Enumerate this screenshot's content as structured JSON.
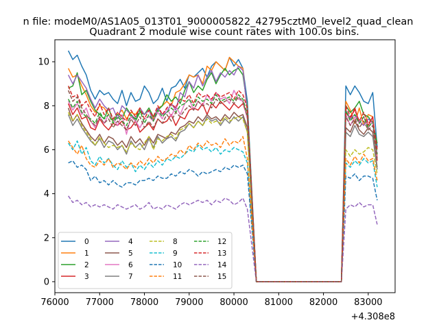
{
  "page": {
    "suptitle": "n file: modeM0/AS1A05_013T01_9000005822_42795cztM0_level2_quad_clean"
  },
  "chart_data": {
    "type": "line",
    "title": "Quadrant 2 module wise count rates with 100.0s bins.",
    "xlabel": "",
    "ylabel": "",
    "x_offset_label": "+4.308e8",
    "xlim": [
      76000,
      83600
    ],
    "ylim": [
      -0.5,
      11
    ],
    "xticks": [
      76000,
      77000,
      78000,
      79000,
      80000,
      81000,
      82000,
      83000
    ],
    "xtick_labels": [
      "76000",
      "77000",
      "78000",
      "79000",
      "80000",
      "81000",
      "82000",
      "83000"
    ],
    "yticks": [
      0,
      2,
      4,
      6,
      8,
      10
    ],
    "ytick_labels": [
      "0",
      "2",
      "4",
      "6",
      "8",
      "10"
    ],
    "grid": false,
    "legend_position": "lower-left",
    "legend_columns": 4,
    "segments": [
      [
        76300,
        80400
      ],
      [
        80500,
        82400
      ],
      [
        82500,
        83300
      ]
    ],
    "series": [
      {
        "name": "0",
        "color": "#1f77b4",
        "dash": "solid",
        "active1": [
          10.5,
          10.1,
          10.3,
          9.8,
          9.4,
          8.7,
          8.3,
          8.7,
          8.5,
          8.6,
          8.3,
          8.1,
          8.7,
          8.0,
          8.6,
          8.2,
          8.3,
          8.9,
          8.6,
          8.1,
          8.3,
          8.8,
          8.2,
          8.8,
          8.9,
          9.2,
          8.8,
          9.4,
          9.3,
          9.5,
          9.7,
          9.3,
          9.8,
          10.0,
          9.8,
          9.6,
          10.2,
          9.8,
          10.1,
          9.7,
          8.2
        ],
        "active2": [
          8.9,
          8.5,
          8.9,
          8.6,
          8.2,
          8.1,
          8.6,
          6.1
        ]
      },
      {
        "name": "1",
        "color": "#ff7f0e",
        "dash": "solid",
        "active1": [
          9.7,
          9.3,
          9.4,
          8.9,
          8.5,
          8.0,
          7.7,
          8.0,
          7.9,
          7.6,
          7.3,
          7.6,
          7.8,
          7.4,
          7.7,
          7.6,
          7.9,
          7.6,
          7.8,
          7.4,
          7.9,
          8.0,
          8.2,
          8.0,
          8.6,
          8.7,
          9.0,
          9.4,
          9.3,
          9.4,
          9.0,
          9.8,
          9.6,
          10.0,
          9.8,
          9.6,
          10.2,
          10.0,
          9.8,
          9.7,
          7.7
        ],
        "active2": [
          8.2,
          7.8,
          7.2,
          7.9,
          7.1,
          7.6,
          7.5,
          5.7
        ]
      },
      {
        "name": "2",
        "color": "#2ca02c",
        "dash": "solid",
        "active1": [
          8.8,
          8.9,
          9.5,
          8.5,
          8.7,
          8.2,
          7.8,
          7.6,
          7.4,
          7.9,
          7.3,
          7.6,
          7.4,
          7.9,
          7.6,
          7.3,
          7.7,
          7.6,
          7.9,
          7.5,
          7.8,
          8.0,
          8.5,
          8.2,
          8.4,
          8.1,
          8.7,
          9.1,
          8.6,
          8.9,
          8.7,
          9.2,
          9.5,
          9.0,
          9.4,
          9.7,
          9.4,
          9.6,
          9.7,
          9.4,
          8.0
        ],
        "active2": [
          8.0,
          7.7,
          7.9,
          8.2,
          7.6,
          7.5,
          7.2,
          6.3
        ]
      },
      {
        "name": "3",
        "color": "#d62728",
        "dash": "solid",
        "active1": [
          8.1,
          7.6,
          7.9,
          7.4,
          7.5,
          7.0,
          6.9,
          7.4,
          7.1,
          6.9,
          7.2,
          7.1,
          7.3,
          6.9,
          7.0,
          7.3,
          6.8,
          7.0,
          7.2,
          6.9,
          7.4,
          7.2,
          7.3,
          7.6,
          7.1,
          7.5,
          7.4,
          7.8,
          7.9,
          7.8,
          8.1,
          7.6,
          8.1,
          7.9,
          8.2,
          8.0,
          7.8,
          8.1,
          7.9,
          8.1,
          7.5
        ],
        "active2": [
          7.7,
          7.4,
          7.9,
          7.2,
          7.5,
          7.1,
          7.5,
          5.5
        ]
      },
      {
        "name": "4",
        "color": "#9467bd",
        "dash": "solid",
        "active1": [
          9.4,
          9.0,
          9.4,
          9.1,
          8.8,
          8.3,
          7.9,
          8.3,
          8.0,
          7.8,
          7.9,
          7.4,
          8.0,
          7.8,
          7.6,
          7.4,
          7.9,
          7.6,
          7.8,
          7.3,
          7.9,
          7.6,
          7.7,
          8.1,
          7.8,
          8.6,
          8.4,
          9.1,
          8.8,
          9.4,
          8.9,
          9.3,
          9.6,
          9.1,
          9.5,
          9.3,
          9.6,
          9.4,
          9.8,
          9.6,
          7.8
        ],
        "active2": [
          7.8,
          7.4,
          7.6,
          7.3,
          7.1,
          7.4,
          7.2,
          5.8
        ]
      },
      {
        "name": "5",
        "color": "#8c564b",
        "dash": "solid",
        "active1": [
          7.9,
          7.3,
          7.6,
          7.2,
          6.9,
          6.6,
          6.4,
          6.7,
          6.3,
          6.6,
          6.5,
          6.2,
          6.4,
          6.1,
          6.6,
          6.3,
          6.5,
          6.2,
          6.6,
          6.3,
          6.7,
          6.6,
          6.5,
          6.8,
          6.7,
          7.0,
          7.1,
          7.3,
          7.2,
          7.5,
          7.3,
          7.6,
          7.4,
          7.5,
          7.3,
          7.6,
          7.4,
          7.7,
          7.5,
          7.6,
          7.0
        ],
        "active2": [
          7.0,
          6.8,
          7.3,
          6.9,
          6.7,
          7.0,
          6.8,
          5.2
        ]
      },
      {
        "name": "6",
        "color": "#e377c2",
        "dash": "solid",
        "active1": [
          8.2,
          7.8,
          8.1,
          7.6,
          7.9,
          7.3,
          7.0,
          7.5,
          7.2,
          7.6,
          7.4,
          7.1,
          7.6,
          6.7,
          7.5,
          7.3,
          7.0,
          7.4,
          7.5,
          7.3,
          7.7,
          7.4,
          7.9,
          7.5,
          8.0,
          7.6,
          8.1,
          8.3,
          7.8,
          8.2,
          8.0,
          8.5,
          8.2,
          8.6,
          8.3,
          8.4,
          8.1,
          8.7,
          8.3,
          8.2,
          7.4
        ],
        "active2": [
          7.6,
          7.1,
          7.5,
          7.2,
          7.5,
          7.0,
          7.3,
          5.6
        ]
      },
      {
        "name": "7",
        "color": "#7f7f7f",
        "dash": "solid",
        "active1": [
          7.6,
          7.1,
          7.4,
          7.0,
          6.7,
          6.4,
          6.2,
          6.5,
          6.1,
          6.4,
          6.3,
          6.0,
          6.2,
          5.8,
          6.4,
          6.1,
          6.3,
          6.0,
          6.5,
          6.1,
          6.6,
          6.3,
          6.5,
          6.6,
          6.4,
          6.8,
          6.9,
          7.2,
          7.0,
          7.3,
          7.1,
          7.5,
          7.3,
          7.4,
          7.1,
          7.4,
          7.2,
          7.5,
          7.3,
          7.5,
          6.8
        ],
        "active2": [
          6.8,
          6.6,
          7.1,
          6.7,
          6.6,
          6.8,
          6.6,
          5.1
        ]
      },
      {
        "name": "8",
        "color": "#bcbd22",
        "dash": "dashed",
        "active1": [
          7.7,
          7.3,
          7.6,
          7.1,
          6.8,
          6.5,
          6.2,
          6.6,
          6.3,
          6.1,
          6.2,
          6.1,
          6.2,
          5.9,
          6.3,
          6.1,
          6.0,
          6.3,
          6.6,
          6.0,
          6.5,
          6.4,
          6.6,
          6.7,
          6.5,
          6.9,
          7.0,
          7.2,
          7.0,
          7.3,
          7.1,
          7.4,
          7.2,
          7.3,
          7.2,
          7.5,
          7.3,
          7.4,
          7.5,
          7.4,
          6.8
        ],
        "active2": [
          6.0,
          5.7,
          6.0,
          5.8,
          5.9,
          6.1,
          6.0,
          4.9
        ]
      },
      {
        "name": "9",
        "color": "#17becf",
        "dash": "dashed",
        "active1": [
          6.3,
          6.0,
          6.4,
          5.8,
          6.1,
          5.5,
          5.3,
          5.7,
          5.4,
          5.6,
          5.3,
          5.1,
          5.5,
          5.2,
          5.4,
          5.0,
          5.3,
          5.1,
          5.4,
          5.2,
          5.5,
          5.3,
          5.6,
          5.5,
          5.7,
          5.6,
          5.8,
          6.0,
          5.9,
          6.2,
          6.0,
          6.1,
          5.9,
          6.1,
          5.8,
          6.0,
          5.9,
          6.1,
          6.0,
          5.9,
          5.4
        ],
        "active2": [
          5.4,
          5.2,
          5.5,
          5.3,
          5.6,
          5.4,
          5.5,
          4.3
        ]
      },
      {
        "name": "10",
        "color": "#1f77b4",
        "dash": "dashed",
        "active1": [
          5.4,
          5.5,
          5.2,
          5.3,
          5.1,
          4.6,
          4.8,
          4.5,
          4.6,
          4.4,
          4.6,
          4.4,
          4.3,
          4.5,
          4.5,
          4.4,
          4.6,
          4.6,
          4.7,
          4.6,
          4.8,
          4.7,
          4.7,
          4.9,
          4.8,
          5.0,
          4.9,
          5.1,
          5.0,
          4.8,
          5.0,
          4.9,
          5.0,
          5.1,
          5.0,
          5.2,
          5.1,
          5.3,
          5.2,
          5.3,
          4.9
        ],
        "active2": [
          4.8,
          4.7,
          4.9,
          4.6,
          4.8,
          4.8,
          4.7,
          3.7
        ]
      },
      {
        "name": "11",
        "color": "#ff7f0e",
        "dash": "dashed",
        "active1": [
          6.4,
          6.1,
          5.8,
          6.2,
          5.6,
          5.3,
          5.2,
          5.5,
          5.3,
          5.6,
          5.2,
          5.4,
          5.3,
          5.1,
          5.4,
          5.2,
          5.5,
          5.3,
          5.6,
          5.4,
          5.7,
          5.5,
          5.6,
          5.8,
          5.7,
          6.0,
          5.8,
          6.2,
          6.0,
          6.3,
          6.1,
          6.4,
          6.2,
          6.3,
          6.1,
          6.5,
          6.2,
          6.4,
          6.3,
          6.6,
          5.6
        ],
        "active2": [
          5.6,
          5.3,
          5.7,
          5.4,
          5.8,
          5.5,
          5.6,
          4.6
        ]
      },
      {
        "name": "12",
        "color": "#2ca02c",
        "dash": "dashed",
        "active1": [
          8.3,
          7.9,
          8.2,
          7.7,
          7.5,
          7.4,
          7.2,
          7.7,
          7.4,
          7.6,
          7.2,
          7.5,
          7.3,
          7.1,
          7.6,
          7.4,
          7.8,
          7.2,
          7.6,
          7.3,
          7.8,
          7.5,
          7.7,
          7.9,
          7.7,
          8.0,
          8.1,
          8.3,
          8.0,
          8.4,
          8.2,
          8.3,
          8.1,
          8.5,
          8.2,
          8.3,
          8.4,
          8.2,
          8.5,
          8.3,
          7.6
        ],
        "active2": [
          7.8,
          7.3,
          7.6,
          7.2,
          7.5,
          7.0,
          7.3,
          5.8
        ]
      },
      {
        "name": "13",
        "color": "#d62728",
        "dash": "dashed",
        "active1": [
          8.9,
          8.4,
          8.5,
          8.0,
          8.2,
          7.8,
          7.5,
          8.1,
          7.6,
          7.9,
          7.4,
          7.7,
          7.5,
          7.3,
          7.8,
          7.5,
          7.9,
          7.4,
          7.8,
          7.5,
          8.0,
          7.6,
          7.9,
          8.1,
          7.9,
          8.3,
          8.2,
          8.5,
          8.1,
          8.6,
          8.4,
          8.5,
          8.3,
          8.6,
          8.4,
          8.5,
          8.6,
          8.3,
          8.7,
          8.5,
          7.9
        ],
        "active2": [
          8.0,
          7.5,
          7.8,
          7.3,
          7.7,
          7.2,
          7.4,
          6.0
        ]
      },
      {
        "name": "14",
        "color": "#9467bd",
        "dash": "dashed",
        "active1": [
          3.9,
          3.6,
          3.7,
          3.5,
          3.6,
          3.4,
          3.5,
          3.4,
          3.5,
          3.4,
          3.3,
          3.5,
          3.4,
          3.3,
          3.4,
          3.5,
          3.3,
          3.4,
          3.6,
          3.3,
          3.4,
          3.3,
          3.5,
          3.4,
          3.3,
          3.5,
          3.6,
          3.5,
          3.6,
          3.7,
          3.6,
          3.7,
          3.5,
          3.7,
          3.6,
          3.8,
          3.7,
          3.5,
          3.6,
          3.8,
          3.3
        ],
        "active2": [
          3.3,
          3.5,
          3.4,
          3.6,
          3.4,
          3.5,
          3.5,
          2.6
        ]
      },
      {
        "name": "15",
        "color": "#8c564b",
        "dash": "dashed",
        "active1": [
          8.7,
          8.2,
          8.4,
          7.9,
          7.6,
          7.3,
          7.1,
          7.5,
          7.2,
          7.4,
          7.0,
          7.3,
          7.1,
          6.9,
          7.4,
          7.1,
          7.5,
          7.0,
          7.3,
          7.0,
          7.4,
          7.2,
          7.6,
          7.3,
          7.7,
          7.5,
          7.8,
          8.0,
          7.8,
          8.2,
          8.0,
          8.1,
          7.9,
          8.3,
          8.1,
          8.2,
          8.3,
          8.1,
          8.4,
          8.2,
          7.5
        ],
        "active2": [
          7.5,
          7.1,
          7.4,
          7.0,
          7.3,
          6.9,
          7.1,
          5.6
        ]
      }
    ]
  }
}
